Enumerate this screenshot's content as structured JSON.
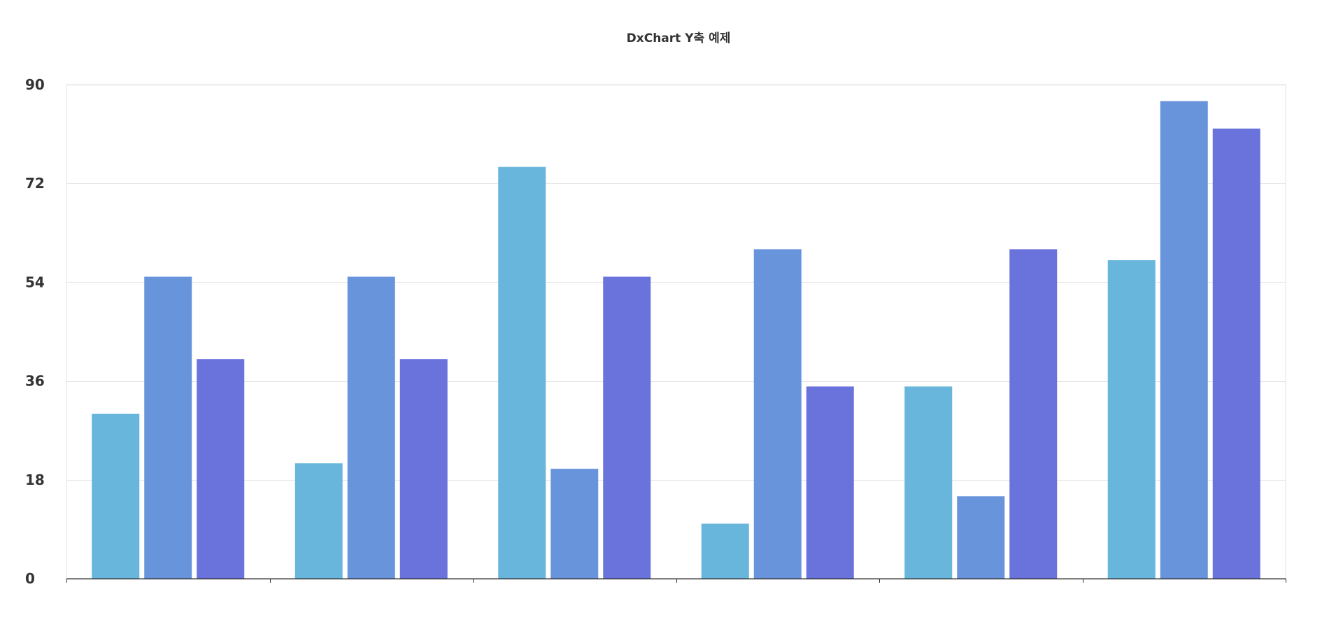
{
  "chart_data": {
    "type": "bar",
    "title": "DxChart Y축 예제",
    "xlabel": "",
    "ylabel": "",
    "ylim": [
      0,
      90
    ],
    "yticks": [
      0,
      18,
      36,
      54,
      72,
      90
    ],
    "ytick_labels": [
      "0",
      "18",
      "36",
      "54",
      "72",
      "90"
    ],
    "categories": [
      "",
      "",
      "",
      "",
      "",
      ""
    ],
    "grid": true,
    "legend": "none",
    "series": [
      {
        "values": [
          30,
          21,
          75,
          10,
          35,
          58
        ],
        "color": "#68b6dc"
      },
      {
        "values": [
          55,
          55,
          20,
          60,
          15,
          87
        ],
        "color": "#6894dc"
      },
      {
        "values": [
          40,
          40,
          55,
          35,
          60,
          82
        ],
        "color": "#6a73dc"
      }
    ]
  }
}
